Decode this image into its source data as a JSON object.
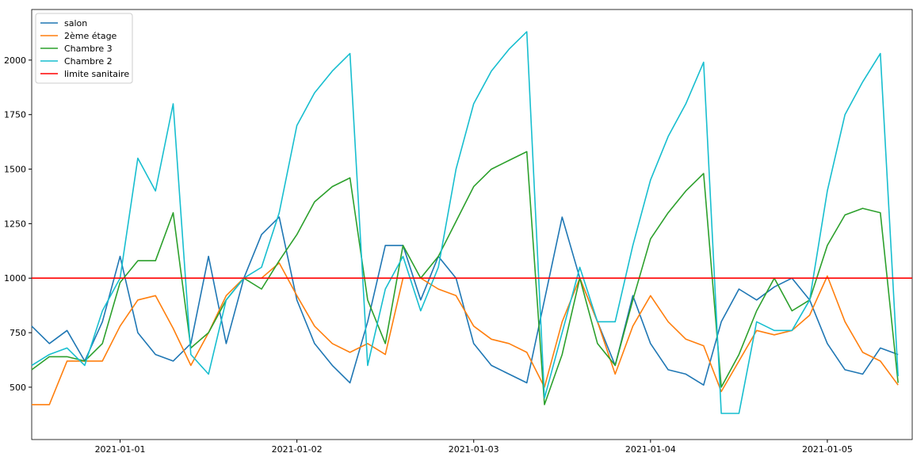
{
  "chart_data": {
    "type": "line",
    "x": [
      -0.5,
      -0.4,
      -0.3,
      -0.2,
      -0.1,
      0,
      0.1,
      0.2,
      0.3,
      0.4,
      0.5,
      0.6,
      0.7,
      0.8,
      0.9,
      1,
      1.1,
      1.2,
      1.3,
      1.4,
      1.5,
      1.6,
      1.7,
      1.8,
      1.9,
      2,
      2.1,
      2.2,
      2.3,
      2.4,
      2.5,
      2.6,
      2.7,
      2.8,
      2.9,
      3,
      3.1,
      3.2,
      3.3,
      3.4,
      3.5,
      3.6,
      3.7,
      3.8,
      3.9,
      4,
      4.1,
      4.2,
      4.3,
      4.4
    ],
    "xlim": [
      -0.5,
      4.48
    ],
    "xticks": [
      {
        "value": 0,
        "label": "2021-01-01"
      },
      {
        "value": 1,
        "label": "2021-01-02"
      },
      {
        "value": 2,
        "label": "2021-01-03"
      },
      {
        "value": 3,
        "label": "2021-01-04"
      },
      {
        "value": 4,
        "label": "2021-01-05"
      }
    ],
    "ylim": [
      260,
      2232
    ],
    "yticks": [
      500,
      750,
      1000,
      1250,
      1500,
      1750,
      2000
    ],
    "grid": false,
    "legend": "upper-left",
    "series": [
      {
        "name": "salon",
        "color": "#1f77b4",
        "values": [
          780,
          700,
          760,
          620,
          800,
          1100,
          750,
          650,
          620,
          700,
          1100,
          700,
          1000,
          1200,
          1280,
          900,
          700,
          600,
          520,
          800,
          1150,
          1150,
          900,
          1100,
          1000,
          700,
          600,
          560,
          520,
          900,
          1280,
          1000,
          800,
          600,
          920,
          700,
          580,
          560,
          510,
          800,
          950,
          900,
          960,
          1000,
          900,
          700,
          580,
          560,
          680,
          650
        ]
      },
      {
        "name": "2ème étage",
        "color": "#ff7f0e",
        "values": [
          420,
          420,
          620,
          620,
          620,
          780,
          900,
          920,
          770,
          600,
          750,
          920,
          1000,
          1000,
          1070,
          920,
          780,
          700,
          660,
          700,
          650,
          1000,
          1000,
          950,
          920,
          780,
          720,
          700,
          660,
          500,
          800,
          1000,
          800,
          560,
          780,
          920,
          800,
          720,
          690,
          480,
          620,
          760,
          740,
          760,
          830,
          1010,
          800,
          660,
          620,
          510
        ]
      },
      {
        "name": "Chambre 3",
        "color": "#2ca02c",
        "values": [
          580,
          640,
          640,
          620,
          700,
          980,
          1080,
          1080,
          1300,
          680,
          750,
          900,
          1000,
          950,
          1080,
          1200,
          1350,
          1420,
          1460,
          900,
          700,
          1150,
          1000,
          1100,
          1260,
          1420,
          1500,
          1540,
          1580,
          420,
          650,
          1000,
          700,
          600,
          900,
          1180,
          1300,
          1400,
          1480,
          500,
          650,
          850,
          1000,
          850,
          900,
          1150,
          1290,
          1320,
          1300,
          520
        ]
      },
      {
        "name": "Chambre 2",
        "color": "#17becf",
        "values": [
          600,
          650,
          680,
          600,
          850,
          1000,
          1550,
          1400,
          1800,
          650,
          560,
          900,
          1000,
          1050,
          1300,
          1700,
          1850,
          1950,
          2030,
          600,
          950,
          1100,
          850,
          1050,
          1500,
          1800,
          1950,
          2050,
          2130,
          450,
          750,
          1050,
          800,
          800,
          1150,
          1450,
          1650,
          1800,
          1990,
          380,
          380,
          800,
          760,
          760,
          900,
          1400,
          1750,
          1900,
          2030,
          550
        ]
      },
      {
        "name": "limite sanitaire",
        "color": "#ff0000",
        "x": [
          -0.5,
          4.48
        ],
        "values": [
          1000,
          1000
        ]
      }
    ]
  }
}
